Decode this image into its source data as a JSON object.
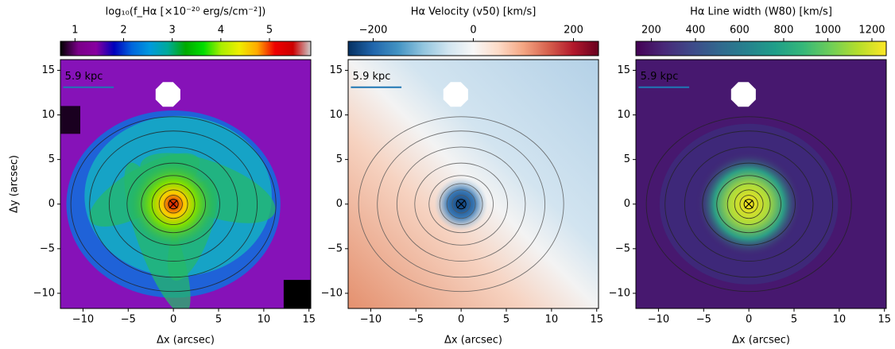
{
  "chart_data": [
    {
      "type": "heatmap",
      "colorbar_label": "log₁₀(f_Hα [×10⁻²⁰ erg/s/cm⁻²])",
      "colormap": "nipy_spectral",
      "clim": [
        0.7,
        5.85
      ],
      "colorbar_ticks": [
        1,
        2,
        3,
        4,
        5
      ],
      "xlabel": "Δx (arcsec)",
      "ylabel": "Δy (arcsec)",
      "annotation": "5.9 kpc",
      "xlim": [
        -12.5,
        15.2
      ],
      "ylim": [
        -11.7,
        16.2
      ],
      "xticks": [
        {
          "value": -10,
          "label": "−10"
        },
        {
          "value": -5,
          "label": "−5"
        },
        0,
        5,
        10,
        15
      ],
      "yticks": [
        {
          "value": -10,
          "label": "−10"
        },
        {
          "value": -5,
          "label": "−5"
        },
        0,
        5,
        10,
        15
      ]
    },
    {
      "type": "heatmap",
      "colorbar_label": "Hα Velocity (v50) [km/s]",
      "colormap": "RdBu_r",
      "clim": [
        -250,
        250
      ],
      "colorbar_ticks": [
        {
          "value": -200,
          "label": "−200"
        },
        0,
        200
      ],
      "xlabel": "Δx (arcsec)",
      "annotation": "5.9 kpc",
      "xlim": [
        -12.5,
        15.2
      ],
      "ylim": [
        -11.7,
        16.2
      ],
      "xticks": [
        {
          "value": -10,
          "label": "−10"
        },
        {
          "value": -5,
          "label": "−5"
        },
        0,
        5,
        10,
        15
      ],
      "yticks": [
        {
          "value": -10,
          "label": "−10"
        },
        {
          "value": -5,
          "label": "−5"
        },
        0,
        5,
        10,
        15
      ]
    },
    {
      "type": "heatmap",
      "colorbar_label": "Hα Line width (W80) [km/s]",
      "colormap": "viridis",
      "clim": [
        130,
        1265
      ],
      "colorbar_ticks": [
        200,
        400,
        600,
        800,
        1000,
        1200
      ],
      "xlabel": "Δx (arcsec)",
      "annotation": "5.9 kpc",
      "xlim": [
        -12.5,
        15.2
      ],
      "ylim": [
        -11.7,
        16.2
      ],
      "xticks": [
        {
          "value": -10,
          "label": "−10"
        },
        {
          "value": -5,
          "label": "−5"
        },
        0,
        5,
        10,
        15
      ],
      "yticks": [
        {
          "value": -10,
          "label": "−10"
        },
        {
          "value": -5,
          "label": "−5"
        },
        0,
        5,
        10,
        15
      ]
    }
  ]
}
